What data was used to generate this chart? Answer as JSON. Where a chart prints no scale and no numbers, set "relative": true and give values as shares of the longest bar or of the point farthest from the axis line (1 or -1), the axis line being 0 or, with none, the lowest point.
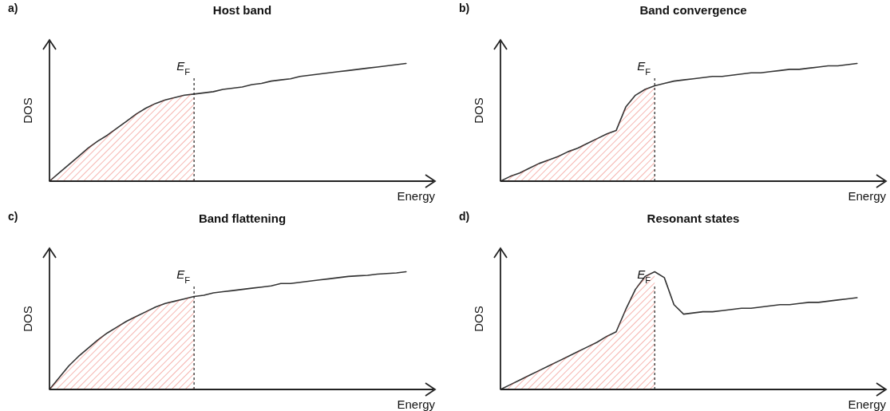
{
  "chart_data": [
    {
      "type": "line",
      "title": "Host band",
      "xlabel": "Energy",
      "ylabel": "DOS",
      "relative": true,
      "annotations": [
        "a)",
        "E$_{F}$"
      ],
      "categories": [
        null,
        null,
        null,
        null,
        null,
        null,
        null,
        null,
        null,
        null,
        null,
        null,
        null,
        null,
        null,
        null,
        null,
        null,
        null,
        null,
        null,
        null,
        null,
        null,
        null,
        null,
        null,
        null,
        null,
        null,
        null,
        null,
        null,
        null,
        null,
        null,
        null,
        null
      ],
      "series": [
        {
          "color": "#333333",
          "values": [
            0,
            0.07,
            0.14,
            0.21,
            0.28,
            0.34,
            0.39,
            0.45,
            0.51,
            0.57,
            0.62,
            0.66,
            0.69,
            0.71,
            0.73,
            0.74,
            0.75,
            0.76,
            0.78,
            0.79,
            0.8,
            0.82,
            0.83,
            0.85,
            0.86,
            0.87,
            0.89,
            0.9,
            0.91,
            0.92,
            0.93,
            0.94,
            0.95,
            0.96,
            0.97,
            0.98,
            0.99,
            1
          ]
        },
        {
          "type": "area",
          "color": "#e8483c",
          "values": [
            0,
            0.07,
            0.14,
            0.21,
            0.28,
            0.34,
            0.39,
            0.45,
            0.51,
            0.57,
            0.62,
            0.66,
            0.69,
            0.71,
            0.73,
            0.74,
            null,
            null,
            null,
            null,
            null,
            null,
            null,
            null,
            null,
            null,
            null,
            null,
            null,
            null,
            null,
            null,
            null,
            null,
            null,
            null,
            null,
            null
          ]
        }
      ]
    },
    {
      "type": "line",
      "title": "Band convergence",
      "xlabel": "Energy",
      "ylabel": "DOS",
      "relative": true,
      "annotations": [
        "b)",
        "E$_{F}$"
      ],
      "categories": [
        null,
        null,
        null,
        null,
        null,
        null,
        null,
        null,
        null,
        null,
        null,
        null,
        null,
        null,
        null,
        null,
        null,
        null,
        null,
        null,
        null,
        null,
        null,
        null,
        null,
        null,
        null,
        null,
        null,
        null,
        null,
        null,
        null,
        null,
        null,
        null,
        null,
        null
      ],
      "series": [
        {
          "color": "#333333",
          "values": [
            0,
            0.04,
            0.07,
            0.11,
            0.15,
            0.18,
            0.21,
            0.25,
            0.28,
            0.32,
            0.36,
            0.4,
            0.43,
            0.63,
            0.73,
            0.78,
            0.81,
            0.83,
            0.85,
            0.86,
            0.87,
            0.88,
            0.89,
            0.89,
            0.9,
            0.91,
            0.92,
            0.92,
            0.93,
            0.94,
            0.95,
            0.95,
            0.96,
            0.97,
            0.98,
            0.98,
            0.99,
            1
          ]
        },
        {
          "type": "area",
          "color": "#e8483c",
          "values": [
            0,
            0.04,
            0.07,
            0.11,
            0.15,
            0.18,
            0.21,
            0.25,
            0.28,
            0.32,
            0.36,
            0.4,
            0.43,
            0.63,
            0.73,
            0.78,
            0.81,
            null,
            null,
            null,
            null,
            null,
            null,
            null,
            null,
            null,
            null,
            null,
            null,
            null,
            null,
            null,
            null,
            null,
            null,
            null,
            null,
            null
          ]
        }
      ]
    },
    {
      "type": "line",
      "title": "Band flattening",
      "xlabel": "Energy",
      "ylabel": "DOS",
      "relative": true,
      "annotations": [
        "c)",
        "E$_{F}$"
      ],
      "categories": [
        null,
        null,
        null,
        null,
        null,
        null,
        null,
        null,
        null,
        null,
        null,
        null,
        null,
        null,
        null,
        null,
        null,
        null,
        null,
        null,
        null,
        null,
        null,
        null,
        null,
        null,
        null,
        null,
        null,
        null,
        null,
        null,
        null,
        null,
        null,
        null,
        null,
        null
      ],
      "series": [
        {
          "color": "#333333",
          "values": [
            0,
            0.1,
            0.2,
            0.28,
            0.35,
            0.42,
            0.48,
            0.53,
            0.58,
            0.62,
            0.66,
            0.7,
            0.73,
            0.75,
            0.77,
            0.79,
            0.8,
            0.82,
            0.83,
            0.84,
            0.85,
            0.86,
            0.87,
            0.88,
            0.9,
            0.9,
            0.91,
            0.92,
            0.93,
            0.94,
            0.95,
            0.96,
            0.965,
            0.97,
            0.98,
            0.985,
            0.99,
            1
          ]
        },
        {
          "type": "area",
          "color": "#e8483c",
          "values": [
            0,
            0.1,
            0.2,
            0.28,
            0.35,
            0.42,
            0.48,
            0.53,
            0.58,
            0.62,
            0.66,
            0.7,
            0.73,
            0.75,
            0.77,
            0.79,
            null,
            null,
            null,
            null,
            null,
            null,
            null,
            null,
            null,
            null,
            null,
            null,
            null,
            null,
            null,
            null,
            null,
            null,
            null,
            null,
            null,
            null
          ]
        }
      ]
    },
    {
      "type": "line",
      "title": "Resonant states",
      "xlabel": "Energy",
      "ylabel": "DOS",
      "relative": true,
      "annotations": [
        "d)",
        "E$_{F}$"
      ],
      "categories": [
        null,
        null,
        null,
        null,
        null,
        null,
        null,
        null,
        null,
        null,
        null,
        null,
        null,
        null,
        null,
        null,
        null,
        null,
        null,
        null,
        null,
        null,
        null,
        null,
        null,
        null,
        null,
        null,
        null,
        null,
        null,
        null,
        null,
        null,
        null,
        null,
        null,
        null
      ],
      "series": [
        {
          "color": "#333333",
          "values": [
            0,
            0.04,
            0.08,
            0.12,
            0.16,
            0.2,
            0.24,
            0.28,
            0.32,
            0.36,
            0.4,
            0.45,
            0.49,
            0.68,
            0.85,
            0.96,
            1,
            0.95,
            0.72,
            0.64,
            0.65,
            0.66,
            0.66,
            0.67,
            0.68,
            0.69,
            0.69,
            0.7,
            0.71,
            0.72,
            0.72,
            0.73,
            0.74,
            0.74,
            0.75,
            0.76,
            0.77,
            0.78
          ]
        },
        {
          "type": "area",
          "color": "#e8483c",
          "values": [
            0,
            0.04,
            0.08,
            0.12,
            0.16,
            0.2,
            0.24,
            0.28,
            0.32,
            0.36,
            0.4,
            0.45,
            0.49,
            0.68,
            0.85,
            0.96,
            1,
            null,
            null,
            null,
            null,
            null,
            null,
            null,
            null,
            null,
            null,
            null,
            null,
            null,
            null,
            null,
            null,
            null,
            null,
            null,
            null,
            null
          ]
        }
      ]
    }
  ]
}
